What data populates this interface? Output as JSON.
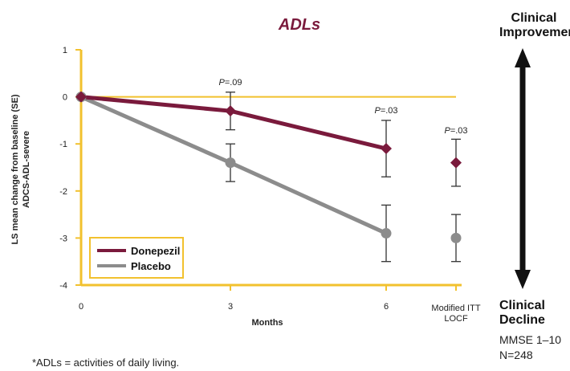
{
  "chart_data": {
    "type": "line",
    "title": "ADLs",
    "xlabel": "Months",
    "ylabel": "LS mean change from baseline (SE)",
    "ylabel2": "ADCS-ADL-severe",
    "ylim": [
      -4,
      1
    ],
    "yticks": [
      1,
      0,
      -1,
      -2,
      -3,
      -4
    ],
    "xtick_labels": [
      "0",
      "3",
      "6",
      "Modified ITT",
      "LOCF"
    ],
    "series": [
      {
        "name": "Donepezil",
        "color": "#7a1a3c",
        "marker": "diamond",
        "points": [
          {
            "x": "0",
            "y": 0,
            "err": 0
          },
          {
            "x": "3",
            "y": -0.3,
            "err": 0.4
          },
          {
            "x": "6",
            "y": -1.1,
            "err": 0.6
          },
          {
            "x": "Modified ITT LOCF",
            "y": -1.4,
            "err": 0.5
          }
        ]
      },
      {
        "name": "Placebo",
        "color": "#8c8c8c",
        "marker": "circle",
        "points": [
          {
            "x": "0",
            "y": 0,
            "err": 0
          },
          {
            "x": "3",
            "y": -1.4,
            "err": 0.4
          },
          {
            "x": "6",
            "y": -2.9,
            "err": 0.6
          },
          {
            "x": "Modified ITT LOCF",
            "y": -3.0,
            "err": 0.5
          }
        ]
      }
    ],
    "annotations": [
      {
        "at": "3",
        "text": "P=.09"
      },
      {
        "at": "6",
        "text": "P=.03"
      },
      {
        "at": "Modified ITT LOCF",
        "text": "P=.03"
      }
    ],
    "accent_color": "#f2c12e"
  },
  "side": {
    "top_line1": "Clinical",
    "top_line2": "Improvement",
    "bottom_line1": "Clinical",
    "bottom_line2": "Decline",
    "mmse": "MMSE 1–10",
    "n": "N=248"
  },
  "footnote": "*ADLs = activities of daily living."
}
